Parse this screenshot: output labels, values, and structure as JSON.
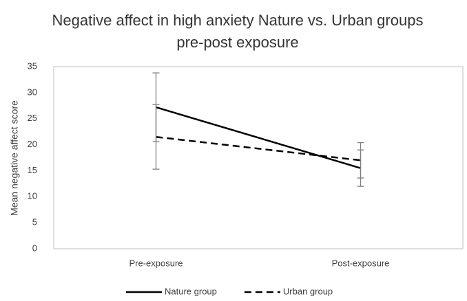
{
  "chart_data": {
    "type": "line",
    "title": "Negative affect in high anxiety Nature vs. Urban groups pre-post exposure",
    "y_label": "Mean negative affect score",
    "categories": [
      "Pre-exposure",
      "Post-exposure"
    ],
    "series": [
      {
        "name": "Nature group",
        "color": "#000000",
        "dash": "solid",
        "values": [
          27.2,
          15.5
        ],
        "errors": [
          6.6,
          3.5
        ]
      },
      {
        "name": "Urban group",
        "color": "#000000",
        "dash": "dashed",
        "values": [
          21.5,
          17.0
        ],
        "errors": [
          6.2,
          3.4
        ]
      }
    ],
    "error_color": "#7f7f7f",
    "ylim": [
      0,
      35
    ],
    "yticks": [
      0,
      5,
      10,
      15,
      20,
      25,
      30,
      35
    ],
    "legend": "bottom"
  }
}
